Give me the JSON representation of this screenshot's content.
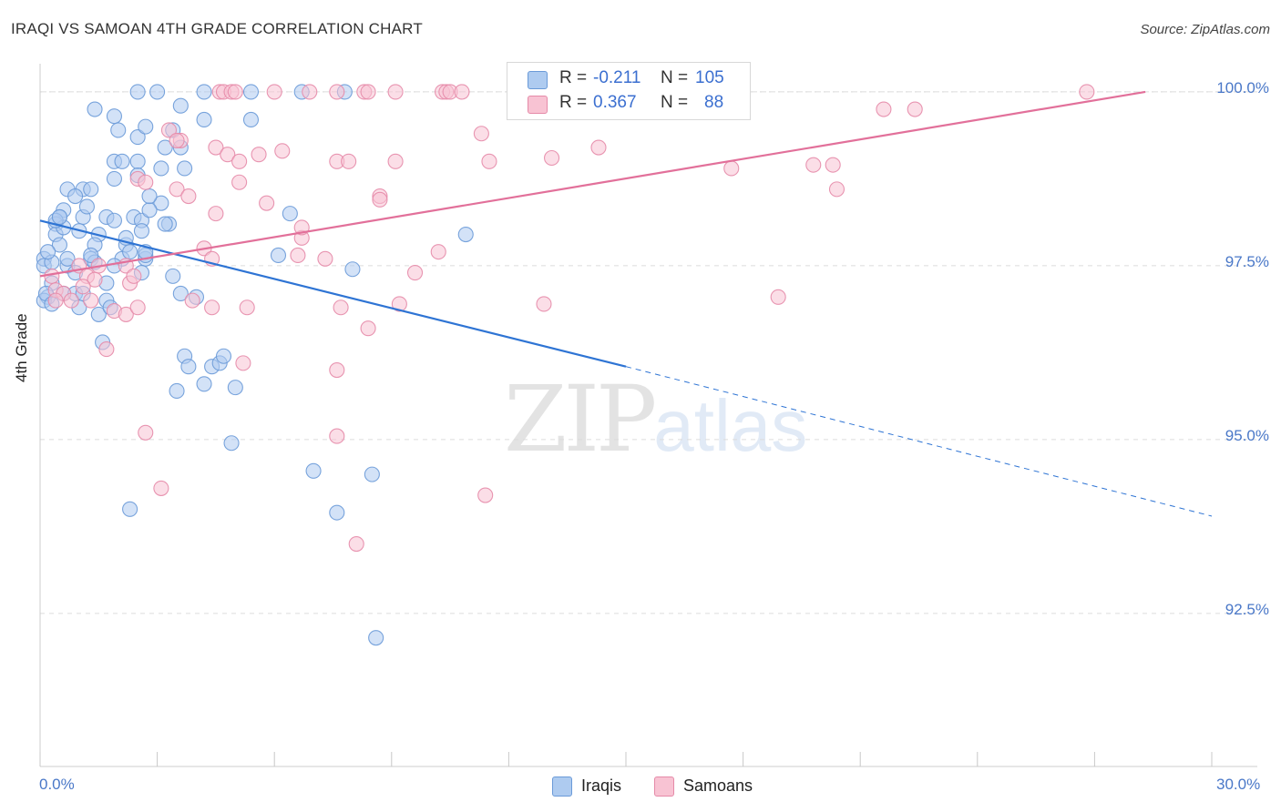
{
  "header": {
    "title": "IRAQI VS SAMOAN 4TH GRADE CORRELATION CHART",
    "source": "Source: ZipAtlas.com"
  },
  "watermark": {
    "zip": "ZIP",
    "atlas": "atlas"
  },
  "stats": [
    {
      "label": "R =",
      "r": "-0.211",
      "n_label": "N =",
      "n": "105",
      "color": "#aecbf0",
      "border": "#6a9ad8"
    },
    {
      "label": "R =",
      "r": "0.367",
      "n_label": "N =",
      "n": "88",
      "color": "#f8c3d3",
      "border": "#e58aa8"
    }
  ],
  "legend": [
    {
      "label": "Iraqis",
      "color": "#aecbf0",
      "border": "#6a9ad8"
    },
    {
      "label": "Samoans",
      "color": "#f8c3d3",
      "border": "#e58aa8"
    }
  ],
  "chart_data": {
    "type": "scatter",
    "title": "IRAQI VS SAMOAN 4TH GRADE CORRELATION CHART",
    "xlabel": "",
    "ylabel": "4th Grade",
    "xlim": [
      0,
      30
    ],
    "ylim": [
      90.3,
      100.3
    ],
    "x_tick_labels": [
      "0.0%",
      "30.0%"
    ],
    "y_ticks": [
      100.0,
      97.5,
      95.0,
      92.5
    ],
    "y_tick_labels": [
      "100.0%",
      "97.5%",
      "95.0%",
      "92.5%"
    ],
    "x_minor_ticks": [
      0,
      3,
      6,
      9,
      12,
      15,
      18,
      21,
      24,
      27,
      30
    ],
    "series": [
      {
        "name": "Iraqis",
        "color": "#6a9ad8",
        "fill": "#aecbf0",
        "r": -0.211,
        "n": 105,
        "trend": {
          "x0": 0,
          "y0": 98.15,
          "x1": 15,
          "y1": 96.05,
          "dash_to_x": 30,
          "dash_to_y": 93.9
        },
        "points": [
          [
            1.4,
            99.75
          ],
          [
            1.9,
            99.65
          ],
          [
            2.5,
            100
          ],
          [
            2.5,
            99.35
          ],
          [
            2.0,
            99.45
          ],
          [
            2.7,
            99.5
          ],
          [
            2.5,
            99.0
          ],
          [
            2.5,
            98.8
          ],
          [
            3.0,
            100
          ],
          [
            3.4,
            99.45
          ],
          [
            3.6,
            99.2
          ],
          [
            3.7,
            98.9
          ],
          [
            3.6,
            99.8
          ],
          [
            4.2,
            99.6
          ],
          [
            4.2,
            100
          ],
          [
            5.4,
            100
          ],
          [
            5.4,
            99.6
          ],
          [
            6.7,
            100
          ],
          [
            7.8,
            100
          ],
          [
            1.9,
            99.0
          ],
          [
            3.1,
            98.9
          ],
          [
            0.7,
            98.6
          ],
          [
            1.1,
            98.6
          ],
          [
            1.3,
            98.6
          ],
          [
            0.6,
            98.3
          ],
          [
            0.5,
            98.2
          ],
          [
            0.4,
            98.1
          ],
          [
            1.1,
            98.2
          ],
          [
            1.7,
            98.2
          ],
          [
            1.9,
            98.15
          ],
          [
            2.4,
            98.2
          ],
          [
            2.6,
            98.15
          ],
          [
            3.1,
            98.4
          ],
          [
            3.3,
            98.1
          ],
          [
            2.6,
            98.0
          ],
          [
            1.5,
            97.95
          ],
          [
            0.4,
            97.95
          ],
          [
            0.5,
            97.8
          ],
          [
            1.4,
            97.8
          ],
          [
            2.2,
            97.8
          ],
          [
            2.7,
            97.6
          ],
          [
            2.7,
            97.65
          ],
          [
            2.1,
            97.6
          ],
          [
            1.9,
            97.5
          ],
          [
            0.1,
            97.6
          ],
          [
            0.1,
            97.5
          ],
          [
            0.3,
            97.55
          ],
          [
            0.7,
            97.5
          ],
          [
            1.3,
            97.6
          ],
          [
            1.4,
            97.55
          ],
          [
            2.6,
            97.4
          ],
          [
            0.2,
            97.05
          ],
          [
            0.1,
            97.0
          ],
          [
            0.6,
            97.1
          ],
          [
            0.9,
            97.1
          ],
          [
            1.1,
            97.1
          ],
          [
            1.7,
            97.25
          ],
          [
            1.7,
            97.0
          ],
          [
            1.0,
            96.9
          ],
          [
            1.5,
            96.8
          ],
          [
            1.8,
            96.9
          ],
          [
            3.4,
            97.35
          ],
          [
            3.6,
            97.1
          ],
          [
            4.0,
            97.05
          ],
          [
            1.6,
            96.4
          ],
          [
            3.7,
            96.2
          ],
          [
            3.8,
            96.05
          ],
          [
            4.4,
            96.05
          ],
          [
            4.6,
            96.1
          ],
          [
            4.7,
            96.2
          ],
          [
            3.5,
            95.7
          ],
          [
            4.2,
            95.8
          ],
          [
            5.0,
            95.75
          ],
          [
            4.9,
            94.95
          ],
          [
            7.0,
            94.55
          ],
          [
            7.6,
            93.95
          ],
          [
            8.5,
            94.5
          ],
          [
            2.3,
            94.0
          ],
          [
            8.6,
            92.15
          ],
          [
            6.4,
            98.25
          ],
          [
            8.0,
            97.45
          ],
          [
            6.1,
            97.65
          ],
          [
            10.9,
            97.95
          ],
          [
            3.2,
            98.1
          ],
          [
            1.0,
            98.0
          ],
          [
            0.6,
            98.05
          ],
          [
            2.2,
            97.9
          ],
          [
            0.3,
            97.25
          ],
          [
            0.9,
            97.4
          ],
          [
            2.3,
            97.7
          ],
          [
            0.2,
            97.7
          ],
          [
            1.3,
            97.65
          ],
          [
            2.7,
            97.7
          ],
          [
            0.7,
            97.6
          ],
          [
            0.4,
            98.15
          ],
          [
            2.1,
            99.0
          ],
          [
            0.9,
            98.5
          ],
          [
            1.2,
            98.35
          ],
          [
            0.5,
            98.2
          ],
          [
            2.8,
            98.3
          ],
          [
            0.15,
            97.1
          ],
          [
            0.3,
            96.95
          ],
          [
            3.2,
            99.2
          ],
          [
            1.9,
            98.75
          ],
          [
            2.8,
            98.5
          ]
        ]
      },
      {
        "name": "Samoans",
        "color": "#e58aa8",
        "fill": "#f8c3d3",
        "r": 0.367,
        "n": 88,
        "trend": {
          "x0": 0,
          "y0": 97.35,
          "x1": 28.3,
          "y1": 100.0
        },
        "points": [
          [
            4.6,
            100
          ],
          [
            4.7,
            100
          ],
          [
            4.9,
            100
          ],
          [
            5.0,
            100
          ],
          [
            6.0,
            100
          ],
          [
            6.9,
            100
          ],
          [
            7.6,
            100
          ],
          [
            8.3,
            100
          ],
          [
            8.4,
            100
          ],
          [
            9.1,
            100
          ],
          [
            10.3,
            100
          ],
          [
            10.4,
            100
          ],
          [
            10.5,
            100
          ],
          [
            10.8,
            100
          ],
          [
            12.3,
            100
          ],
          [
            13.6,
            100
          ],
          [
            26.8,
            100
          ],
          [
            3.6,
            99.3
          ],
          [
            4.5,
            99.2
          ],
          [
            4.8,
            99.1
          ],
          [
            5.1,
            99.0
          ],
          [
            5.6,
            99.1
          ],
          [
            6.2,
            99.15
          ],
          [
            7.6,
            99.0
          ],
          [
            7.9,
            99.0
          ],
          [
            9.1,
            99.0
          ],
          [
            11.3,
            99.4
          ],
          [
            11.5,
            99.0
          ],
          [
            13.1,
            99.05
          ],
          [
            14.3,
            99.2
          ],
          [
            17.7,
            98.9
          ],
          [
            19.8,
            98.95
          ],
          [
            20.3,
            98.95
          ],
          [
            20.4,
            98.6
          ],
          [
            21.6,
            99.75
          ],
          [
            22.4,
            99.75
          ],
          [
            3.3,
            99.45
          ],
          [
            3.5,
            99.3
          ],
          [
            2.5,
            98.75
          ],
          [
            2.7,
            98.7
          ],
          [
            3.5,
            98.6
          ],
          [
            3.8,
            98.5
          ],
          [
            5.1,
            98.7
          ],
          [
            5.8,
            98.4
          ],
          [
            4.5,
            98.25
          ],
          [
            6.7,
            97.9
          ],
          [
            6.7,
            98.05
          ],
          [
            8.7,
            98.5
          ],
          [
            10.2,
            97.7
          ],
          [
            4.2,
            97.75
          ],
          [
            4.4,
            97.6
          ],
          [
            6.6,
            97.65
          ],
          [
            7.3,
            97.6
          ],
          [
            8.7,
            98.45
          ],
          [
            1.0,
            97.5
          ],
          [
            1.2,
            97.35
          ],
          [
            1.4,
            97.3
          ],
          [
            1.5,
            97.5
          ],
          [
            2.2,
            97.5
          ],
          [
            2.3,
            97.25
          ],
          [
            2.4,
            97.35
          ],
          [
            0.3,
            97.35
          ],
          [
            0.4,
            97.15
          ],
          [
            0.6,
            97.1
          ],
          [
            0.4,
            97.0
          ],
          [
            0.8,
            97.0
          ],
          [
            1.1,
            97.2
          ],
          [
            1.3,
            97.0
          ],
          [
            1.9,
            96.85
          ],
          [
            2.2,
            96.8
          ],
          [
            2.5,
            96.9
          ],
          [
            3.9,
            97.0
          ],
          [
            4.4,
            96.9
          ],
          [
            5.3,
            96.9
          ],
          [
            9.6,
            97.4
          ],
          [
            7.7,
            96.9
          ],
          [
            8.4,
            96.6
          ],
          [
            9.2,
            96.95
          ],
          [
            12.9,
            96.95
          ],
          [
            18.9,
            97.05
          ],
          [
            1.7,
            96.3
          ],
          [
            5.2,
            96.1
          ],
          [
            7.6,
            96.0
          ],
          [
            2.7,
            95.1
          ],
          [
            7.6,
            95.05
          ],
          [
            3.1,
            94.3
          ],
          [
            11.4,
            94.2
          ],
          [
            8.1,
            93.5
          ]
        ]
      }
    ]
  }
}
